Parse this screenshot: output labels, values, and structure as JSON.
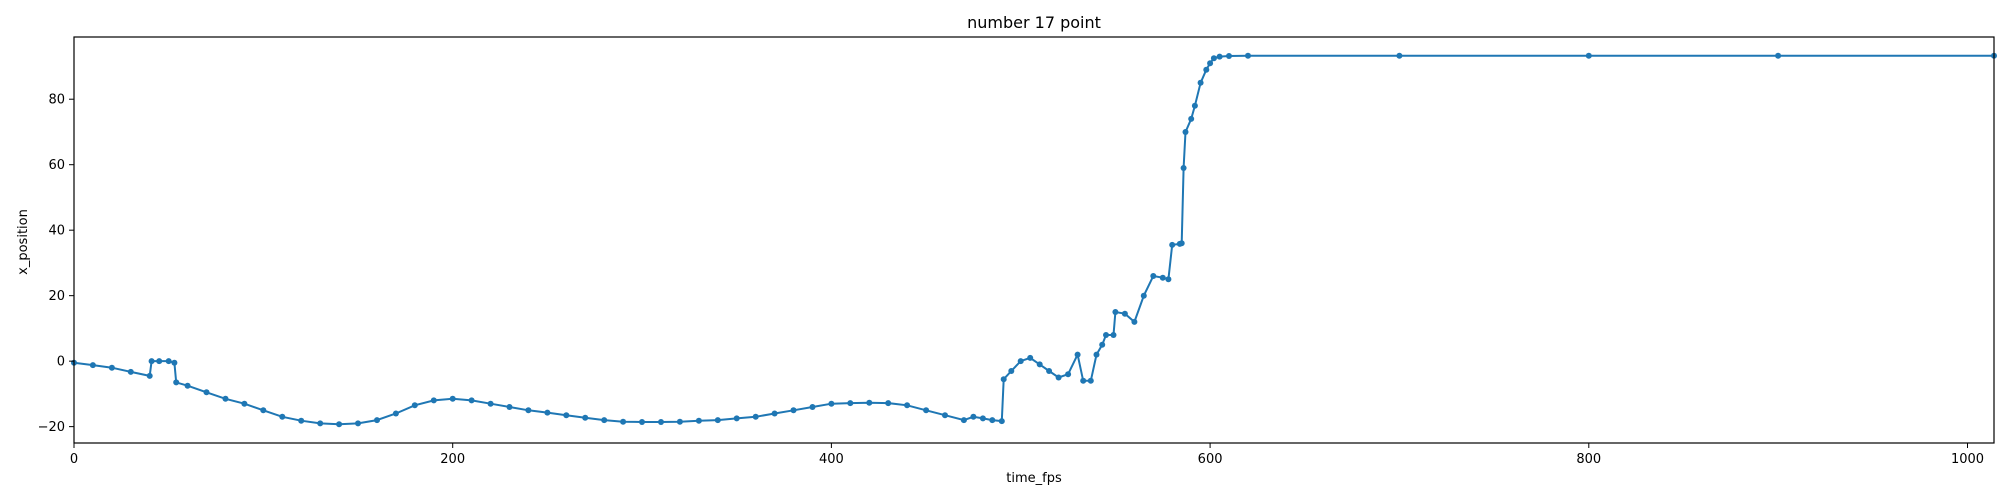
{
  "chart_data": {
    "type": "line",
    "title": "number 17 point",
    "xlabel": "time_fps",
    "ylabel": "x_position",
    "xlim": [
      0,
      1014
    ],
    "ylim": [
      -25,
      99
    ],
    "xticks": [
      0,
      200,
      400,
      600,
      800,
      1000
    ],
    "yticks": [
      -20,
      0,
      20,
      40,
      60,
      80
    ],
    "grid": false,
    "marker": "dot",
    "color": "#1f77b4",
    "series": [
      {
        "x": [
          0,
          10,
          20,
          30,
          40,
          41,
          45,
          50,
          53,
          54,
          60,
          70,
          80,
          90,
          100,
          110,
          120,
          130,
          140,
          150,
          160,
          170,
          180,
          190,
          200,
          210,
          220,
          230,
          240,
          250,
          260,
          270,
          280,
          290,
          300,
          310,
          320,
          330,
          340,
          350,
          360,
          370,
          380,
          390,
          400,
          410,
          420,
          430,
          440,
          450,
          460,
          470,
          475,
          480,
          485,
          490,
          491,
          495,
          500,
          505,
          510,
          515,
          520,
          525,
          530,
          533,
          537,
          540,
          543,
          545,
          549,
          550,
          555,
          560,
          565,
          570,
          575,
          578,
          580,
          584,
          585,
          586,
          587,
          590,
          592,
          595,
          598,
          600,
          602,
          605,
          610,
          620,
          700,
          800,
          900,
          1014
        ],
        "y": [
          -0.5,
          -1.2,
          -2,
          -3.3,
          -4.5,
          0,
          0,
          0,
          -0.5,
          -6.5,
          -7.5,
          -9.5,
          -11.5,
          -13,
          -15,
          -17,
          -18.2,
          -19,
          -19.3,
          -19,
          -18,
          -16,
          -13.5,
          -12,
          -11.5,
          -12,
          -13,
          -14,
          -15,
          -15.7,
          -16.5,
          -17.3,
          -18,
          -18.5,
          -18.6,
          -18.6,
          -18.5,
          -18.2,
          -18,
          -17.5,
          -17,
          -16,
          -15,
          -14,
          -13,
          -12.8,
          -12.7,
          -12.8,
          -13.5,
          -15,
          -16.5,
          -18,
          -17,
          -17.5,
          -18,
          -18.3,
          -5.5,
          -3,
          0,
          1,
          -1,
          -3,
          -5,
          -4,
          2,
          -6,
          -6,
          2,
          5,
          8,
          8,
          15,
          14.5,
          12,
          20,
          26,
          25.5,
          25,
          35.5,
          35.8,
          36,
          59,
          70,
          74,
          78,
          85,
          89,
          91,
          92.5,
          93,
          93.2,
          93.3,
          93.3,
          93.3,
          93.3,
          93.3
        ]
      }
    ]
  }
}
